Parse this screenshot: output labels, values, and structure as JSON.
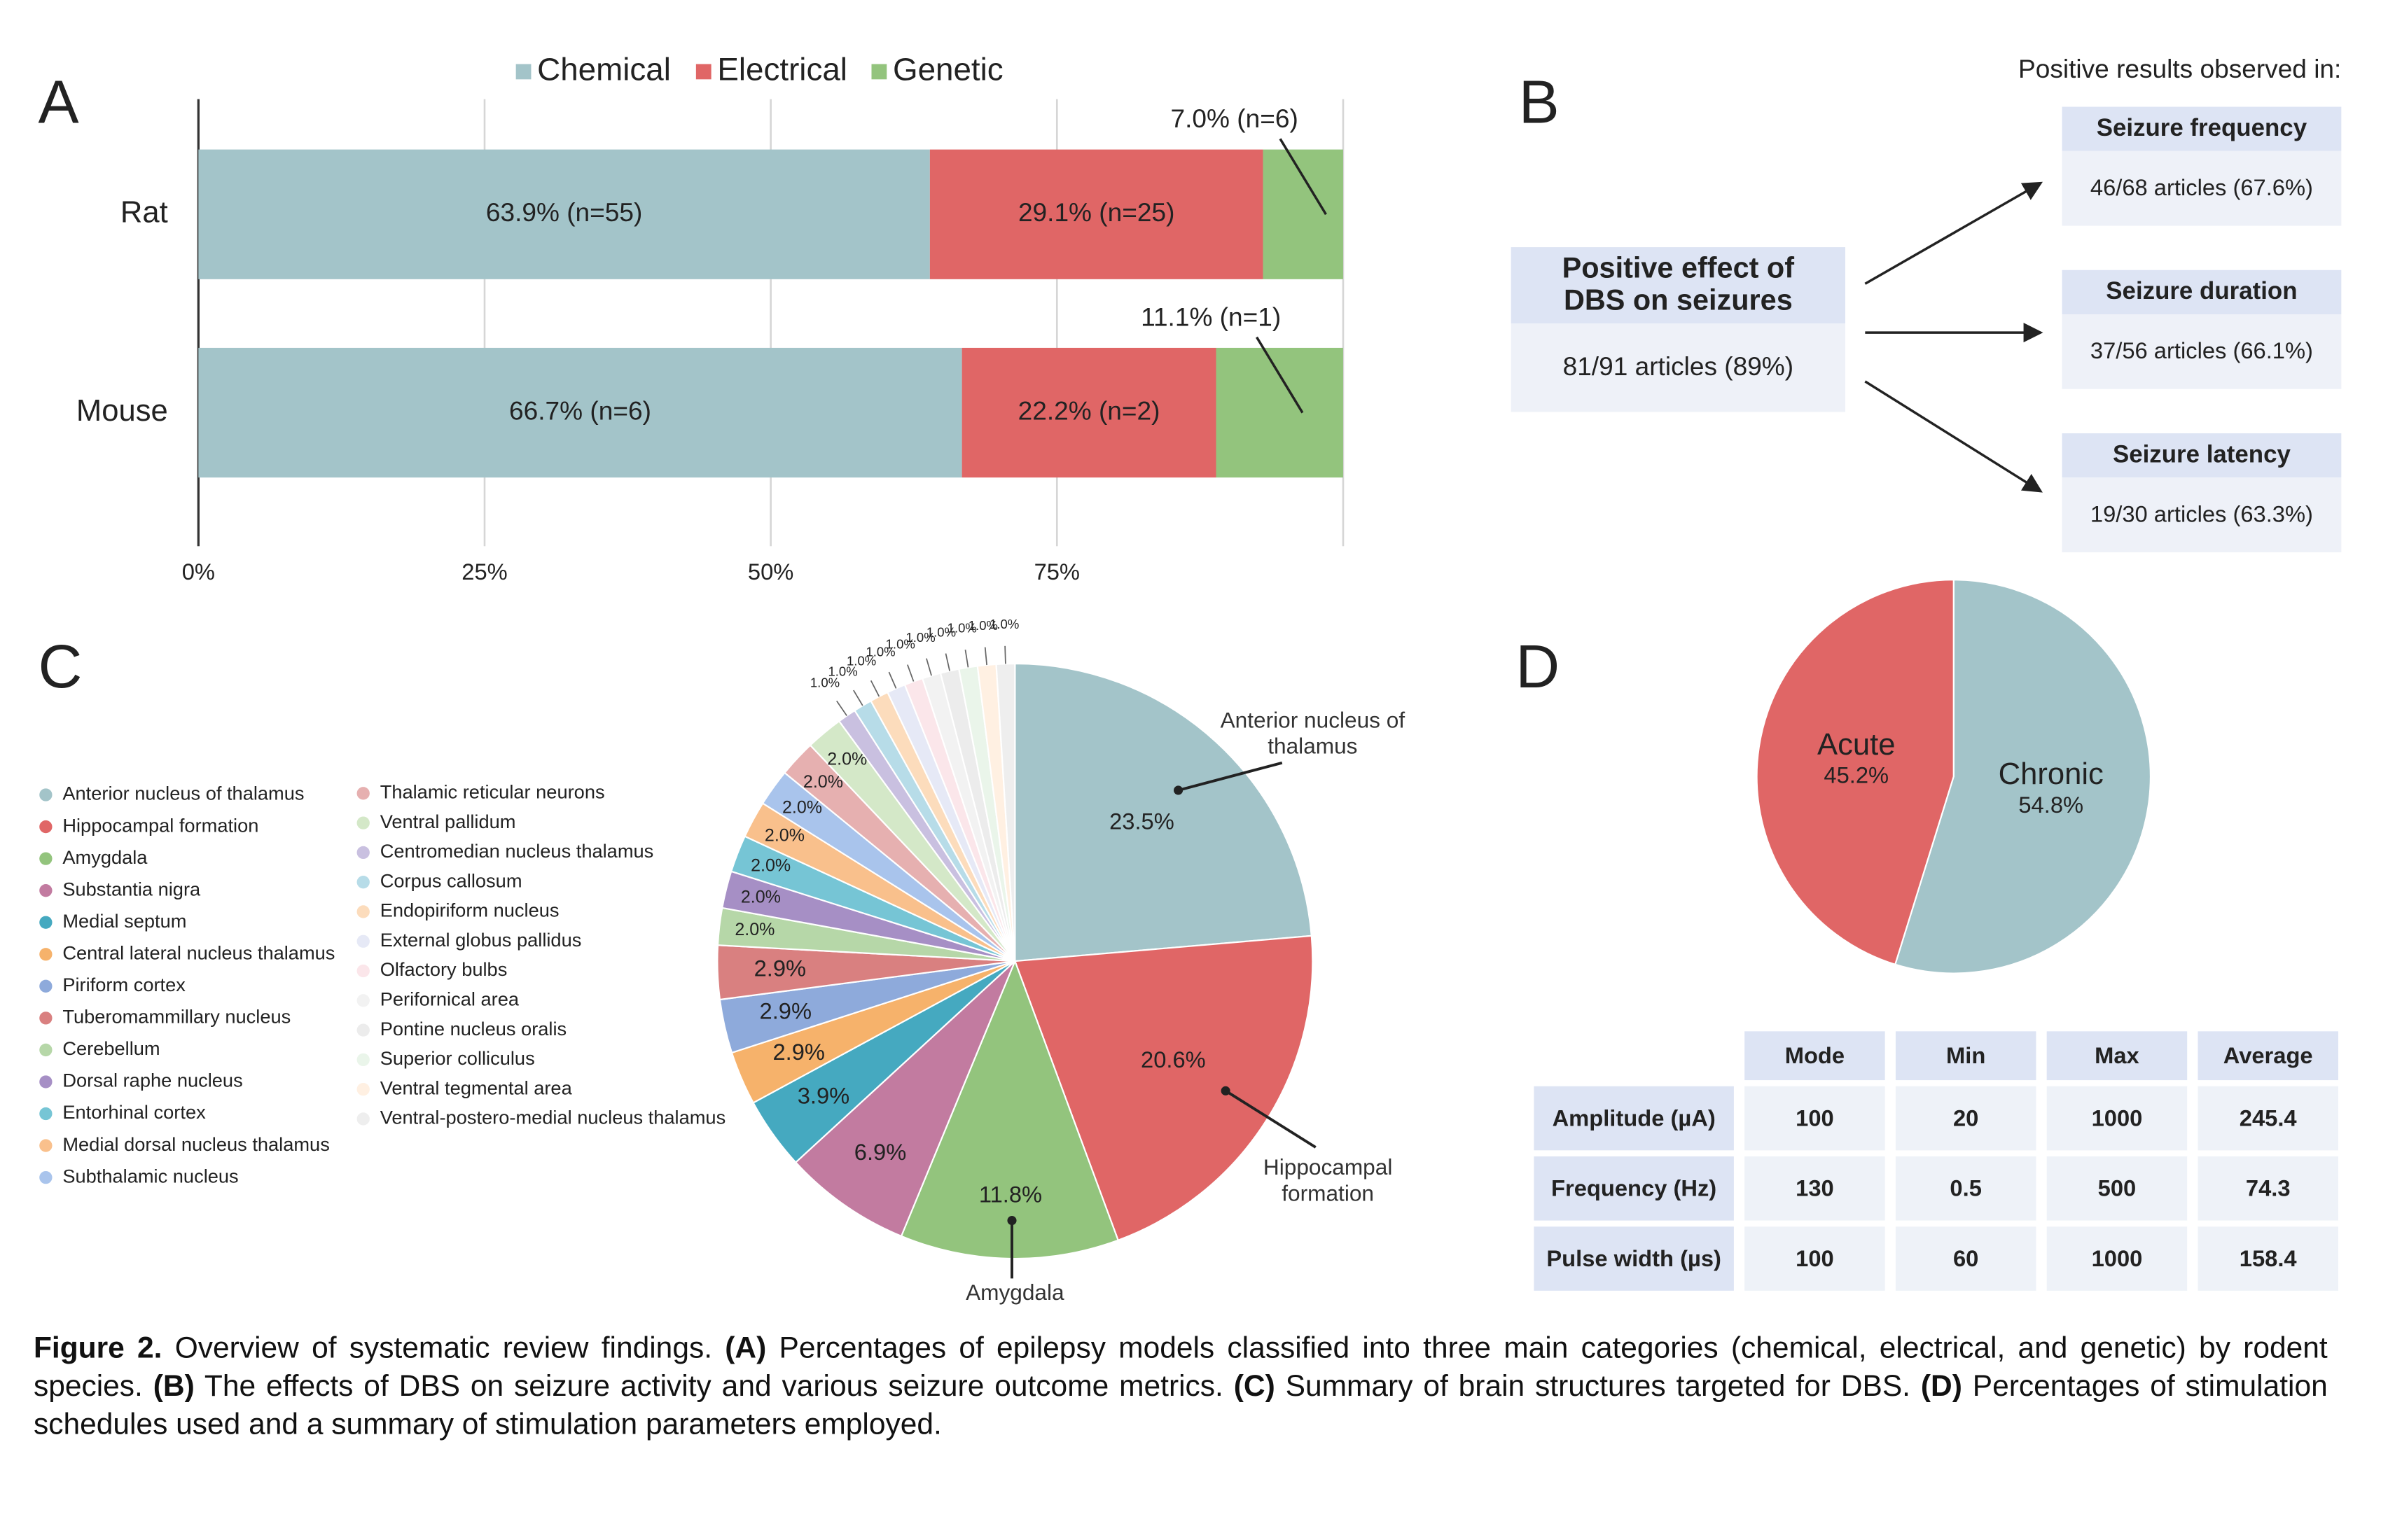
{
  "chart_data": [
    {
      "type": "bar",
      "orientation": "horizontal",
      "stacked": true,
      "label": "A",
      "categories": [
        "Rat",
        "Mouse"
      ],
      "series": [
        {
          "name": "Chemical",
          "color": "#a3c4c9",
          "values": [
            63.9,
            66.7
          ],
          "value_labels": [
            "63.9% (n=55)",
            "66.7% (n=6)"
          ]
        },
        {
          "name": "Electrical",
          "color": "#e06666",
          "values": [
            29.1,
            22.2
          ],
          "value_labels": [
            "29.1% (n=25)",
            "22.2% (n=2)"
          ]
        },
        {
          "name": "Genetic",
          "color": "#93c47d",
          "values": [
            7.0,
            11.1
          ],
          "value_labels": [
            "7.0% (n=6)",
            "11.1% (n=1)"
          ]
        }
      ],
      "xlim": [
        0,
        100
      ],
      "xticks": [
        {
          "value": 0,
          "label": "0%"
        },
        {
          "value": 25,
          "label": "25%"
        },
        {
          "value": 50,
          "label": "50%"
        },
        {
          "value": 75,
          "label": "75%"
        }
      ],
      "grid": true,
      "legend": "top"
    },
    {
      "type": "pie",
      "label": "C",
      "categories": [
        "Anterior nucleus of thalamus",
        "Hippocampal formation",
        "Amygdala",
        "Substantia nigra",
        "Medial septum",
        "Central lateral nucleus thalamus",
        "Piriform cortex",
        "Tuberomammillary nucleus",
        "Cerebellum",
        "Dorsal raphe nucleus",
        "Entorhinal cortex",
        "Medial dorsal nucleus thalamus",
        "Subthalamic nucleus",
        "Thalamic reticular neurons",
        "Ventral pallidum",
        "Centromedian nucleus thalamus",
        "Corpus callosum",
        "Endopiriform nucleus",
        "External globus pallidus",
        "Olfactory bulbs",
        "Perifornical area",
        "Pontine nucleus oralis",
        "Superior colliculus",
        "Ventral tegmental area",
        "Ventral-postero-medial nucleus thalamus"
      ],
      "values": [
        23.5,
        20.6,
        11.8,
        6.9,
        3.9,
        2.9,
        2.9,
        2.9,
        2.0,
        2.0,
        2.0,
        2.0,
        2.0,
        2.0,
        2.0,
        1.0,
        1.0,
        1.0,
        1.0,
        1.0,
        1.0,
        1.0,
        1.0,
        1.0,
        1.0
      ],
      "value_labels": [
        "23.5%",
        "20.6%",
        "11.8%",
        "6.9%",
        "3.9%",
        "2.9%",
        "2.9%",
        "2.9%",
        "2.0%",
        "2.0%",
        "2.0%",
        "2.0%",
        "2.0%",
        "2.0%",
        "2.0%",
        "1.0%",
        "1.0%",
        "1.0%",
        "1.0%",
        "1.0%",
        "1.0%",
        "1.0%",
        "1.0%",
        "1.0%",
        "1.0%"
      ],
      "colors": [
        "#a3c4c9",
        "#e06666",
        "#93c47d",
        "#c27ba0",
        "#45a9c0",
        "#f6b26b",
        "#8eaadb",
        "#d98080",
        "#b6d7a8",
        "#a68fc5",
        "#76c5d5",
        "#f9c08c",
        "#a9c4ec",
        "#e6b0b0",
        "#d4e8c8",
        "#c9c0e0",
        "#b7dce8",
        "#fcdcbc",
        "#e6e9f6",
        "#fbe6ea",
        "#f2f2f2",
        "#ececec",
        "#eaf5ea",
        "#fff0e2",
        "#eeeeee"
      ],
      "legend": "left"
    },
    {
      "type": "pie",
      "label": "D",
      "categories": [
        "Chronic",
        "Acute"
      ],
      "values": [
        54.8,
        45.2
      ],
      "value_labels": [
        "54.8%",
        "45.2%"
      ],
      "colors": [
        "#a3c4c9",
        "#e06666"
      ]
    }
  ],
  "panel_b": {
    "label": "B",
    "header": "Positive results observed in:",
    "main": {
      "title": "Positive effect of DBS on seizures",
      "text": "81/91 articles (89%)"
    },
    "outcomes": [
      {
        "title": "Seizure frequency",
        "text": "46/68 articles (67.6%)"
      },
      {
        "title": "Seizure duration",
        "text": "37/56 articles (66.1%)"
      },
      {
        "title": "Seizure latency",
        "text": "19/30 articles (63.3%)"
      }
    ]
  },
  "table": {
    "columns": [
      "Mode",
      "Min",
      "Max",
      "Average"
    ],
    "rows": [
      {
        "label": "Amplitude (µA)",
        "cells": [
          100,
          20,
          1000,
          245.4
        ]
      },
      {
        "label": "Frequency (Hz)",
        "cells": [
          130,
          0.5,
          500,
          74.3
        ]
      },
      {
        "label": "Pulse width (µs)",
        "cells": [
          100,
          60,
          1000,
          158.4
        ]
      }
    ]
  },
  "caption": [
    {
      "text": "Figure 2.",
      "bold": true
    },
    {
      "text": " Overview of systematic review findings. "
    },
    {
      "text": "(A)",
      "bold": true
    },
    {
      "text": " Percentages of epilepsy models classified into three main categories (chemical, electrical, and genetic) by rodent species. "
    },
    {
      "text": "(B)",
      "bold": true
    },
    {
      "text": " The effects of DBS on seizure activity and various seizure outcome metrics. "
    },
    {
      "text": "(C)",
      "bold": true
    },
    {
      "text": " Summary of brain structures targeted for DBS. "
    },
    {
      "text": "(D)",
      "bold": true
    },
    {
      "text": " Percentages of stimulation schedules used and a summary of stimulation parameters employed."
    }
  ]
}
